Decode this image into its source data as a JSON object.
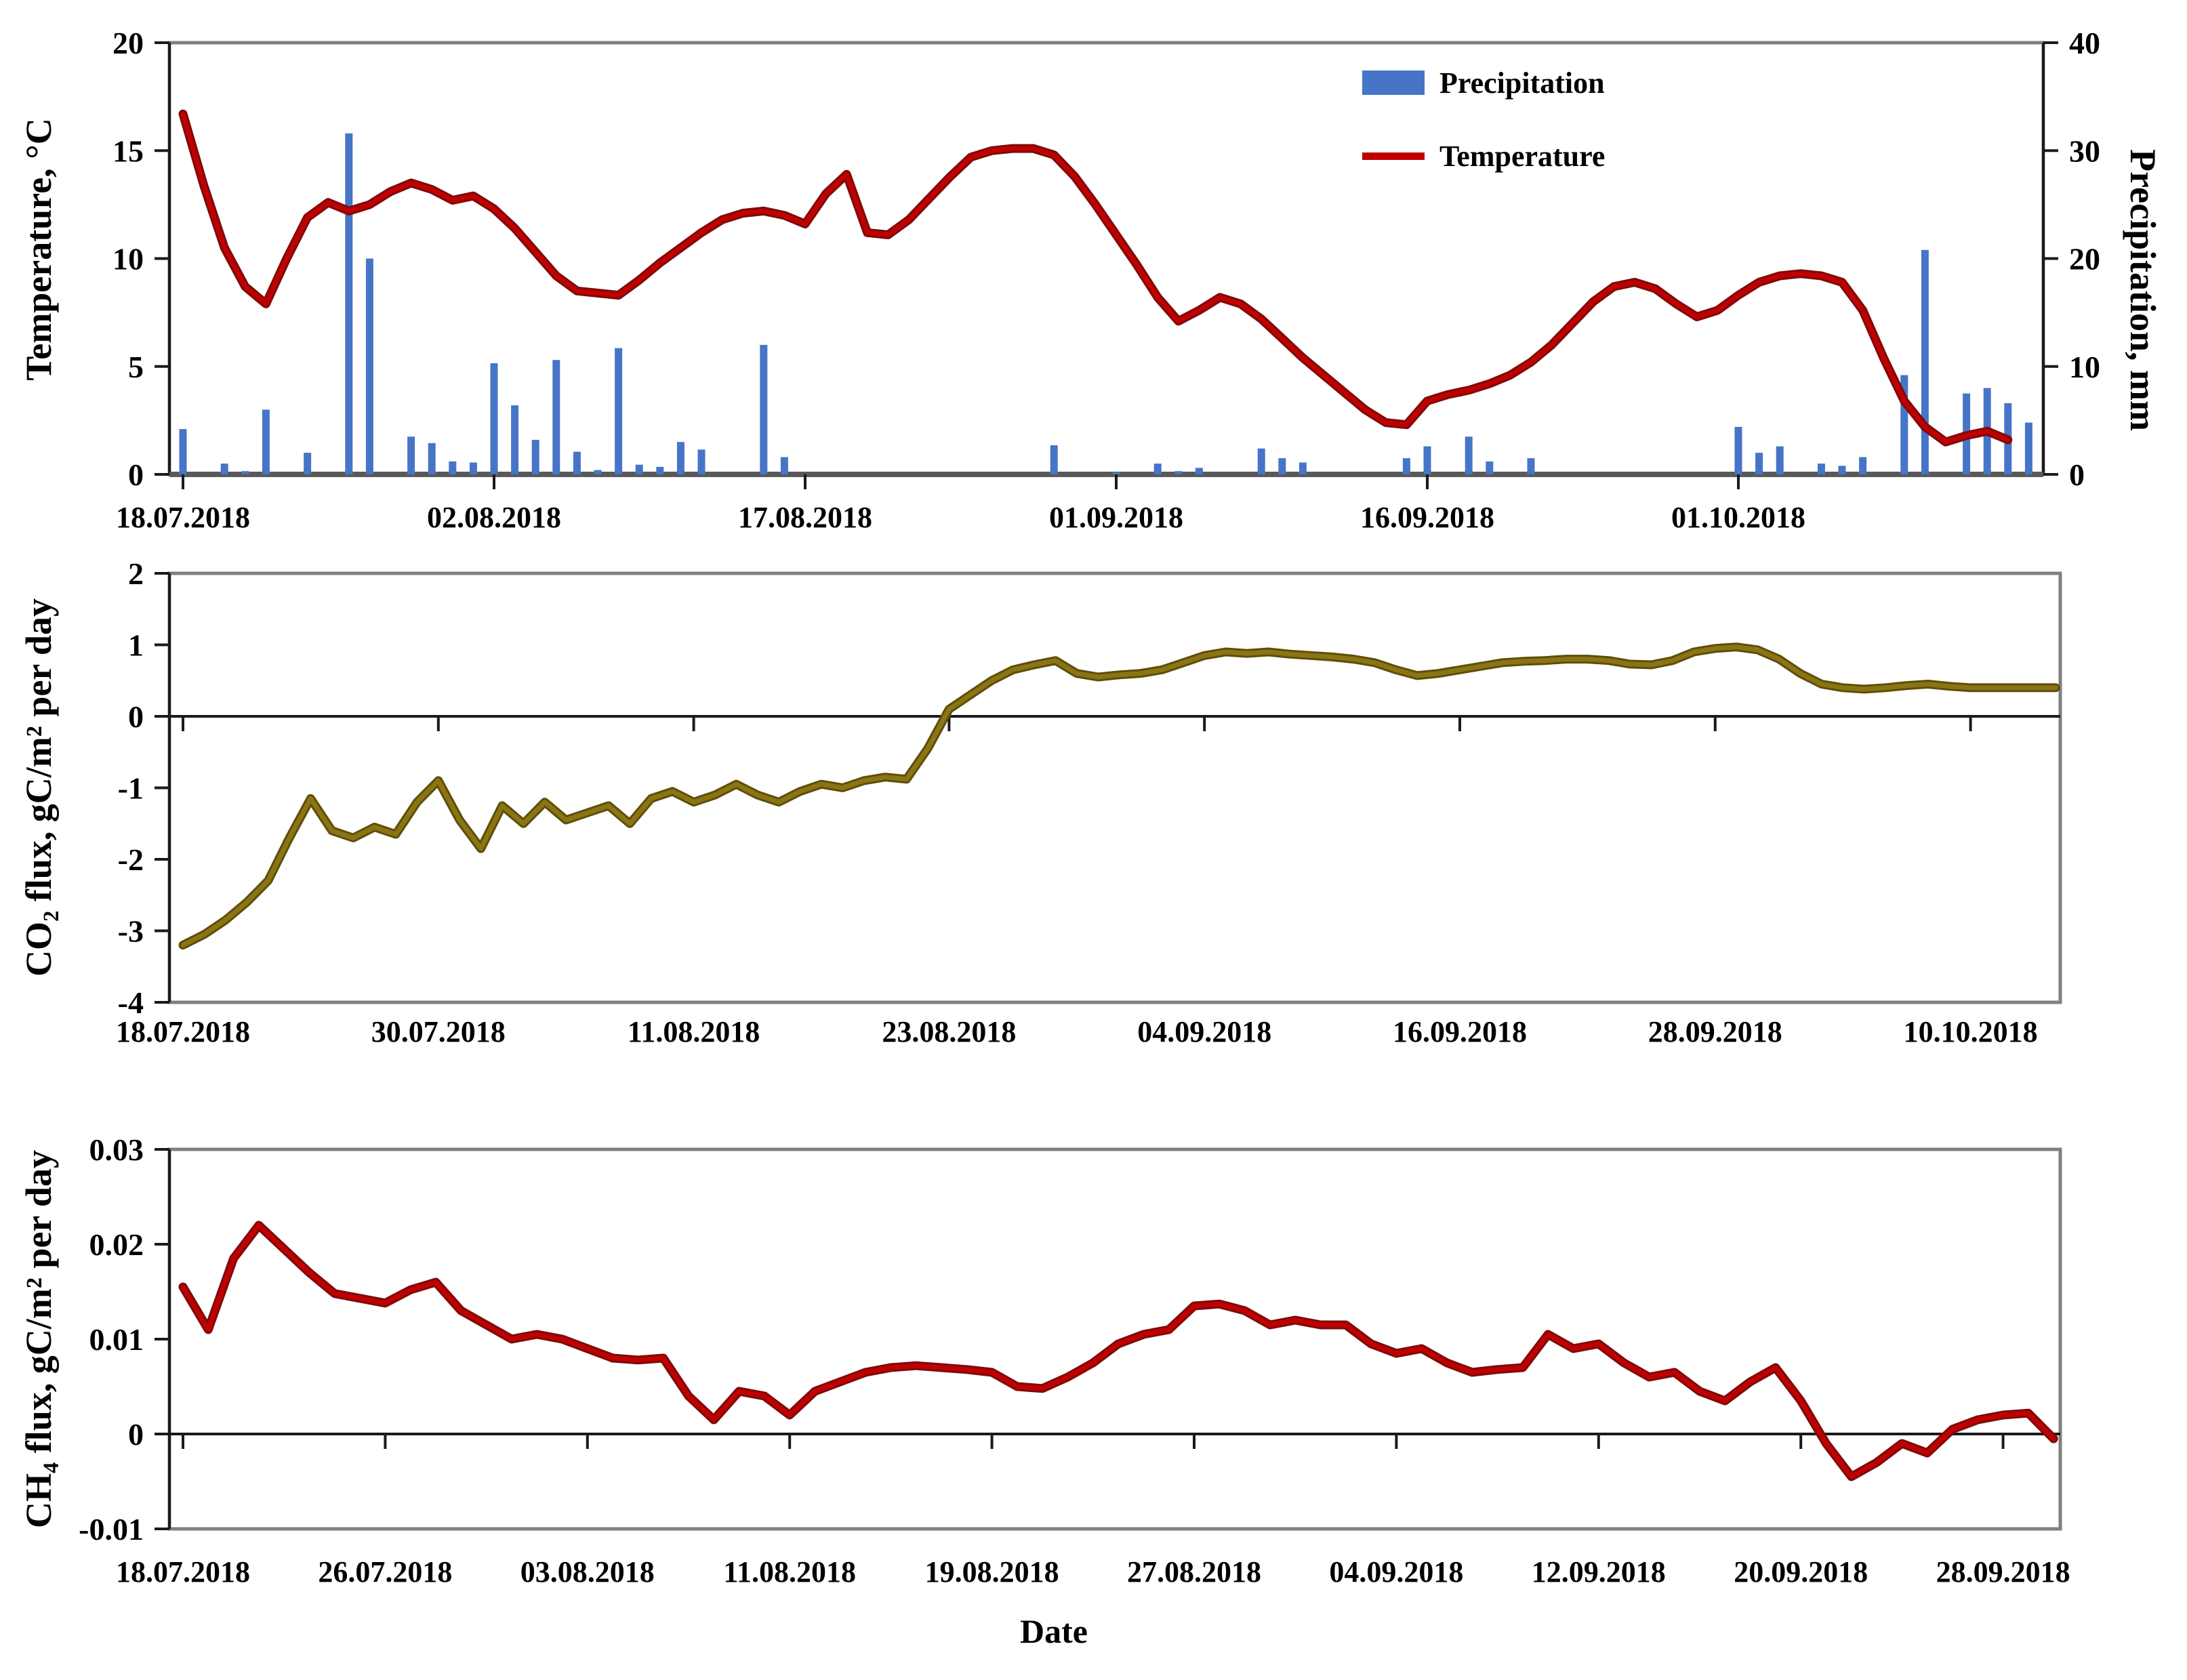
{
  "xlabel": "Date",
  "colors": {
    "precipitation": "#4675c8",
    "temperature": "#c00000",
    "co2": "#8a7414",
    "ch4": "#c00000",
    "frame": "#808080",
    "axis": "#1a1a1a"
  },
  "chart_data": [
    {
      "id": "temperature-precipitation",
      "type": "bar+line",
      "x_tick_labels": [
        "18.07.2018",
        "02.08.2018",
        "17.08.2018",
        "01.09.2018",
        "16.09.2018",
        "01.10.2018"
      ],
      "x_tick_days": [
        0,
        15,
        30,
        45,
        60,
        75
      ],
      "x_range_days": [
        0,
        88
      ],
      "left_axis": {
        "title": "Temperature, °C",
        "min": 0,
        "max": 20,
        "ticks": [
          0,
          5,
          10,
          15,
          20
        ]
      },
      "right_axis": {
        "title": "Precipitation, mm",
        "min": 0,
        "max": 40,
        "ticks": [
          0,
          10,
          20,
          30,
          40
        ]
      },
      "legend": [
        {
          "label": "Precipitation",
          "type": "bar",
          "color": "#4675c8"
        },
        {
          "label": "Temperature",
          "type": "line",
          "color": "#c00000"
        }
      ],
      "legend_position": "inside-top-right",
      "series": [
        {
          "name": "Precipitation",
          "type": "bar",
          "axis": "right",
          "color": "#4675c8",
          "values": [
            4.2,
            0,
            1,
            0.3,
            6,
            0,
            2,
            0,
            31.6,
            20,
            0,
            3.5,
            2.9,
            1.2,
            1.1,
            10.3,
            6.4,
            3.2,
            10.6,
            2.1,
            0.4,
            11.7,
            0.9,
            0.7,
            3,
            2.3,
            0,
            0,
            12,
            1.6,
            0,
            0,
            0,
            0,
            0,
            0,
            0,
            0,
            0,
            0,
            0,
            0,
            2.7,
            0,
            0,
            0.2,
            0,
            1,
            0.3,
            0.6,
            0,
            0,
            2.4,
            1.5,
            1.1,
            0,
            0,
            0,
            0,
            1.5,
            2.6,
            0,
            3.5,
            1.2,
            0,
            1.5,
            0,
            0,
            0,
            0,
            0,
            0,
            0,
            0,
            0,
            4.4,
            2,
            2.6,
            0,
            1,
            0.8,
            1.6,
            0,
            9.2,
            20.8,
            0,
            7.5,
            8,
            6.6,
            4.8
          ]
        },
        {
          "name": "Temperature",
          "type": "line",
          "axis": "left",
          "color": "#c00000",
          "values": [
            16.7,
            13.4,
            10.5,
            8.7,
            7.9,
            10.0,
            11.9,
            12.6,
            12.2,
            12.5,
            13.1,
            13.5,
            13.2,
            12.7,
            12.9,
            12.3,
            11.4,
            10.3,
            9.2,
            8.5,
            8.4,
            8.3,
            9.0,
            9.8,
            10.5,
            11.2,
            11.8,
            12.1,
            12.2,
            12.0,
            11.6,
            13.0,
            13.9,
            11.2,
            11.1,
            11.8,
            12.8,
            13.8,
            14.7,
            15.0,
            15.1,
            15.1,
            14.8,
            13.8,
            12.5,
            11.1,
            9.7,
            8.2,
            7.1,
            7.6,
            8.2,
            7.9,
            7.2,
            6.3,
            5.4,
            4.6,
            3.8,
            3.0,
            2.4,
            2.3,
            3.4,
            3.7,
            3.9,
            4.2,
            4.6,
            5.2,
            6.0,
            7.0,
            8.0,
            8.7,
            8.9,
            8.6,
            7.9,
            7.3,
            7.6,
            8.3,
            8.9,
            9.2,
            9.3,
            9.2,
            8.9,
            7.6,
            5.4,
            3.4,
            2.2,
            1.5,
            1.8,
            2.0,
            1.6
          ]
        }
      ]
    },
    {
      "id": "co2-flux",
      "type": "line",
      "x_tick_labels": [
        "18.07.2018",
        "30.07.2018",
        "11.08.2018",
        "23.08.2018",
        "04.09.2018",
        "16.09.2018",
        "28.09.2018",
        "10.10.2018"
      ],
      "x_tick_days": [
        0,
        12,
        24,
        36,
        48,
        60,
        72,
        84
      ],
      "x_range_days": [
        0,
        88
      ],
      "y_axis": {
        "title": "CO₂ flux, gC/m² per day",
        "min": -4,
        "max": 2,
        "ticks": [
          2,
          1,
          0,
          -1,
          -2,
          -3,
          -4
        ]
      },
      "series": [
        {
          "name": "CO2 flux",
          "type": "line",
          "axis": "left",
          "color": "#8a7414",
          "values": [
            -3.2,
            -3.05,
            -2.85,
            -2.6,
            -2.3,
            -1.7,
            -1.15,
            -1.6,
            -1.7,
            -1.55,
            -1.65,
            -1.2,
            -0.9,
            -1.45,
            -1.85,
            -1.25,
            -1.5,
            -1.2,
            -1.45,
            -1.35,
            -1.25,
            -1.5,
            -1.15,
            -1.05,
            -1.2,
            -1.1,
            -0.95,
            -1.1,
            -1.2,
            -1.05,
            -0.95,
            -1.0,
            -0.9,
            -0.85,
            -0.88,
            -0.45,
            0.1,
            0.3,
            0.5,
            0.65,
            0.72,
            0.78,
            0.6,
            0.55,
            0.58,
            0.6,
            0.65,
            0.75,
            0.85,
            0.9,
            0.88,
            0.9,
            0.87,
            0.85,
            0.83,
            0.8,
            0.75,
            0.65,
            0.57,
            0.6,
            0.65,
            0.7,
            0.75,
            0.77,
            0.78,
            0.8,
            0.8,
            0.78,
            0.73,
            0.72,
            0.78,
            0.9,
            0.95,
            0.97,
            0.93,
            0.8,
            0.6,
            0.45,
            0.4,
            0.38,
            0.4,
            0.43,
            0.45,
            0.42,
            0.4,
            0.4,
            0.4,
            0.4,
            0.4
          ]
        }
      ]
    },
    {
      "id": "ch4-flux",
      "type": "line",
      "x_tick_labels": [
        "18.07.2018",
        "26.07.2018",
        "03.08.2018",
        "11.08.2018",
        "19.08.2018",
        "27.08.2018",
        "04.09.2018",
        "12.09.2018",
        "20.09.2018",
        "28.09.2018"
      ],
      "x_tick_days": [
        0,
        8,
        16,
        24,
        32,
        40,
        48,
        56,
        64,
        72
      ],
      "x_range_days": [
        0,
        74
      ],
      "y_axis": {
        "title": "CH₄ flux, gC/m² per day",
        "min": -0.01,
        "max": 0.03,
        "ticks": [
          0.03,
          0.02,
          0.01,
          0,
          -0.01
        ]
      },
      "series": [
        {
          "name": "CH4 flux",
          "type": "line",
          "axis": "left",
          "color": "#c00000",
          "values": [
            0.0155,
            0.011,
            0.0185,
            0.022,
            0.0195,
            0.017,
            0.0148,
            0.0143,
            0.0138,
            0.0152,
            0.016,
            0.013,
            0.0115,
            0.01,
            0.0105,
            0.01,
            0.009,
            0.008,
            0.0078,
            0.008,
            0.004,
            0.0015,
            0.0045,
            0.004,
            0.002,
            0.0045,
            0.0055,
            0.0065,
            0.007,
            0.0072,
            0.007,
            0.0068,
            0.0065,
            0.005,
            0.0048,
            0.006,
            0.0075,
            0.0095,
            0.0105,
            0.011,
            0.0135,
            0.0137,
            0.013,
            0.0115,
            0.012,
            0.0115,
            0.0115,
            0.0095,
            0.0085,
            0.009,
            0.0075,
            0.0065,
            0.0068,
            0.007,
            0.0105,
            0.009,
            0.0095,
            0.0075,
            0.006,
            0.0065,
            0.0045,
            0.0035,
            0.0055,
            0.007,
            0.0035,
            -0.001,
            -0.0045,
            -0.003,
            -0.001,
            -0.002,
            0.0005,
            0.0015,
            0.002,
            0.0022,
            -0.0005
          ]
        }
      ]
    }
  ]
}
